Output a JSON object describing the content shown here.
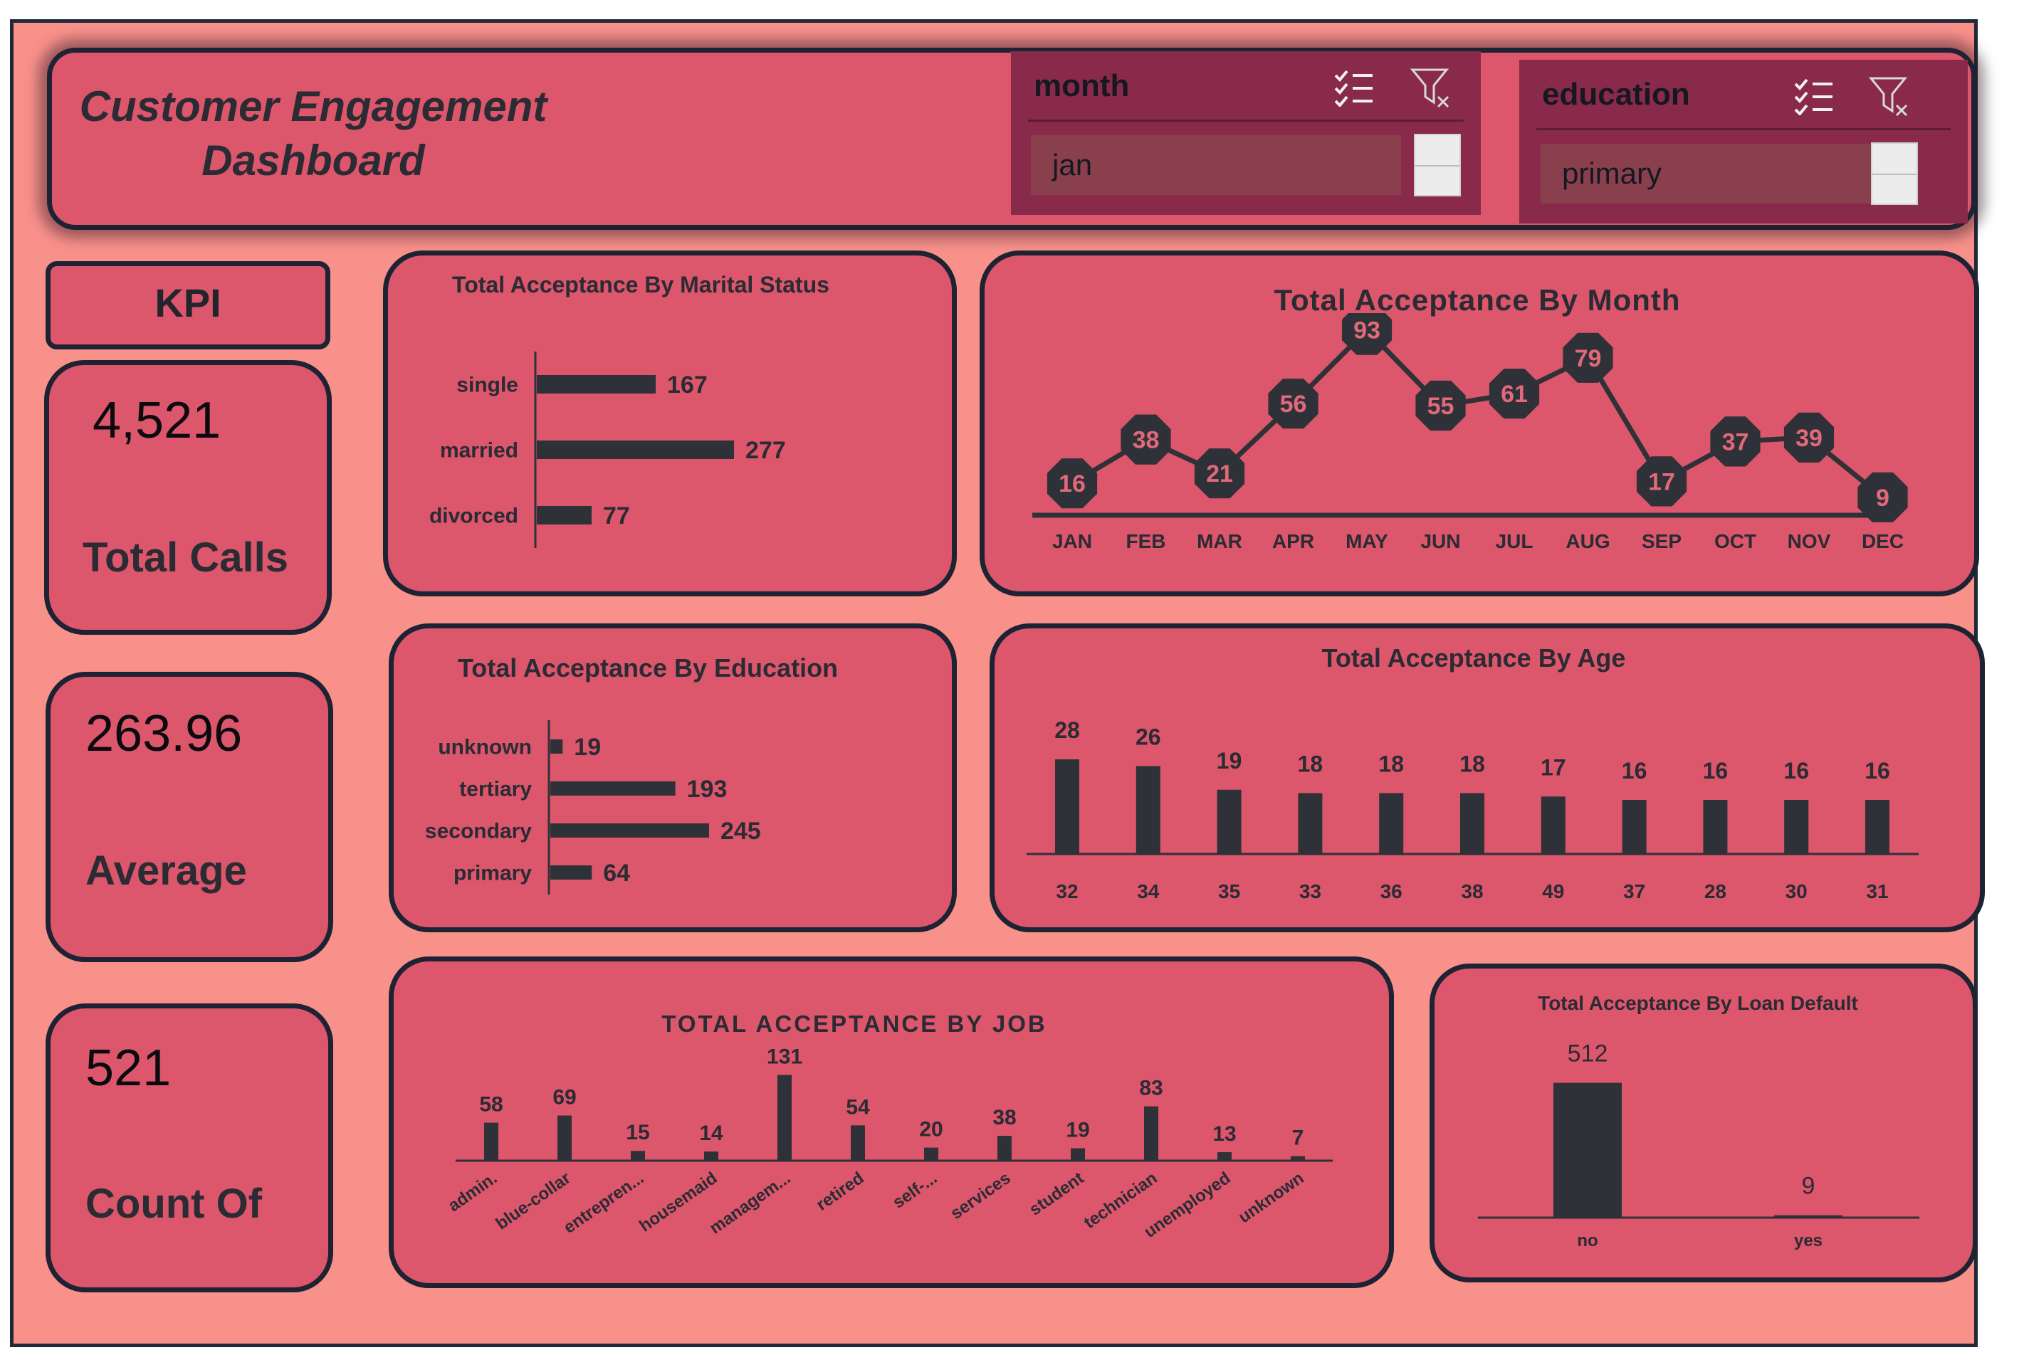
{
  "dashboard": {
    "title": "Customer Engagement Dashboard"
  },
  "slicers": {
    "month": {
      "title": "month",
      "selected": "jan"
    },
    "education": {
      "title": "education",
      "selected": "primary"
    }
  },
  "icons": {
    "multi_select": "multi-select-icon",
    "clear_filter": "clear-filter-icon"
  },
  "kpi": {
    "label": "KPI",
    "total_calls": {
      "value": "4,521",
      "name": "Total Calls"
    },
    "average": {
      "value": "263.96",
      "name": "Average"
    },
    "count": {
      "value": "521",
      "name": "Count Of"
    }
  },
  "colors": {
    "background": "#f9918b",
    "panel": "#dc566c",
    "border": "#1d2333",
    "bar": "#2f3138",
    "slicer": "#8a2a4a"
  },
  "chart_data": [
    {
      "id": "marital",
      "type": "bar",
      "orientation": "horizontal",
      "title": "Total Acceptance By Marital Status",
      "categories": [
        "single",
        "married",
        "divorced"
      ],
      "values": [
        167,
        277,
        77
      ]
    },
    {
      "id": "month",
      "type": "line",
      "title": "Total Acceptance By Month",
      "categories": [
        "JAN",
        "FEB",
        "MAR",
        "APR",
        "MAY",
        "JUN",
        "JUL",
        "AUG",
        "SEP",
        "OCT",
        "NOV",
        "DEC"
      ],
      "values": [
        16,
        38,
        21,
        56,
        93,
        55,
        61,
        79,
        17,
        37,
        39,
        9
      ]
    },
    {
      "id": "education",
      "type": "bar",
      "orientation": "horizontal",
      "title": "Total Acceptance By Education",
      "categories": [
        "unknown",
        "tertiary",
        "secondary",
        "primary"
      ],
      "values": [
        19,
        193,
        245,
        64
      ]
    },
    {
      "id": "age",
      "type": "bar",
      "title": "Total Acceptance By Age",
      "categories": [
        "32",
        "34",
        "35",
        "33",
        "36",
        "38",
        "49",
        "37",
        "28",
        "30",
        "31"
      ],
      "values": [
        28,
        26,
        19,
        18,
        18,
        18,
        17,
        16,
        16,
        16,
        16
      ]
    },
    {
      "id": "job",
      "type": "bar",
      "title": "TOTAL ACCEPTANCE BY JOB",
      "categories": [
        "admin.",
        "blue-collar",
        "entrepren...",
        "housemaid",
        "managem...",
        "retired",
        "self-...",
        "services",
        "student",
        "technician",
        "unemployed",
        "unknown"
      ],
      "values": [
        58,
        69,
        15,
        14,
        131,
        54,
        20,
        38,
        19,
        83,
        13,
        7
      ]
    },
    {
      "id": "loan",
      "type": "bar",
      "title": "Total Acceptance By Loan Default",
      "categories": [
        "no",
        "yes"
      ],
      "values": [
        512,
        9
      ]
    }
  ]
}
